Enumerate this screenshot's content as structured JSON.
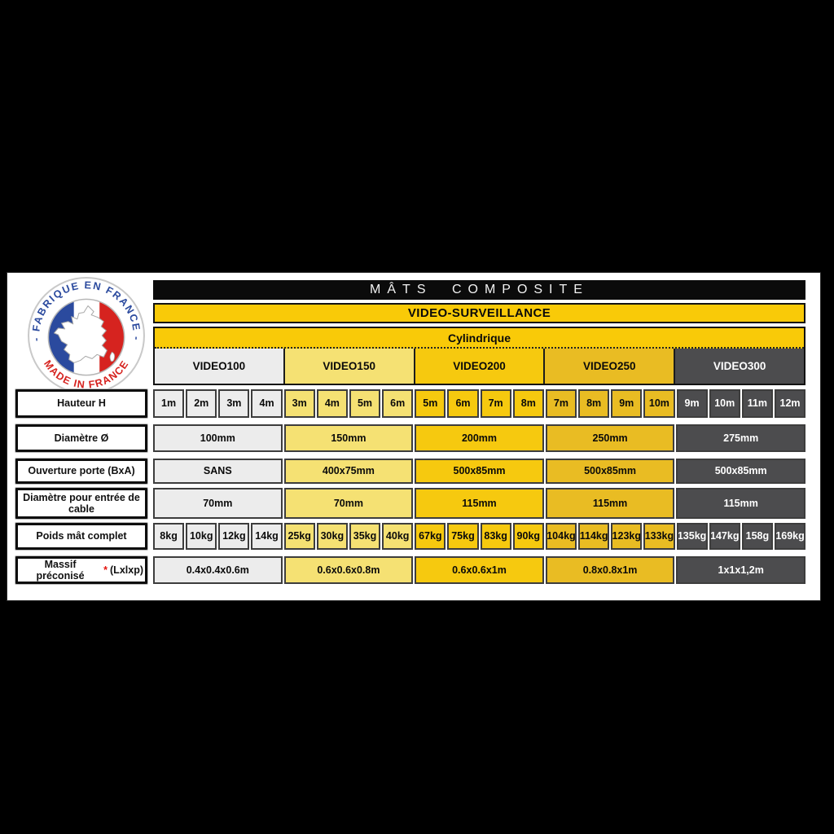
{
  "logo": {
    "top_text": "- FABRIQUE EN FRANCE -",
    "bottom_text": "MADE IN FRANCE",
    "colors": {
      "blue": "#2b4a9e",
      "white": "#ffffff",
      "red": "#d6231f",
      "ring": "#c9c9c9"
    }
  },
  "header": {
    "title": "MÂTS COMPOSITE",
    "subtitle": "VIDEO-SURVEILLANCE",
    "shape_label": "Cylindrique"
  },
  "colors": {
    "gold_bar": "#f9ca08",
    "title_bar_bg": "#0b0b0b",
    "panel_bg": "#ffffff",
    "frame_bg": "#000000",
    "cell_border": "#3d3d3d",
    "asterisk_red": "#e3140e"
  },
  "columns": [
    {
      "label": "VIDEO100",
      "bg": "#ececec",
      "text": "#0a0a0a"
    },
    {
      "label": "VIDEO150",
      "bg": "#f5e173",
      "text": "#0a0a0a"
    },
    {
      "label": "VIDEO200",
      "bg": "#f6c90f",
      "text": "#0a0a0a"
    },
    {
      "label": "VIDEO250",
      "bg": "#e9bc23",
      "text": "#0a0a0a"
    },
    {
      "label": "VIDEO300",
      "bg": "#4c4c4e",
      "text": "#ffffff"
    }
  ],
  "rows": [
    {
      "key": "hauteur",
      "label": "Hauteur H",
      "type": "split",
      "values": [
        [
          "1m",
          "2m",
          "3m",
          "4m"
        ],
        [
          "3m",
          "4m",
          "5m",
          "6m"
        ],
        [
          "5m",
          "6m",
          "7m",
          "8m"
        ],
        [
          "7m",
          "8m",
          "9m",
          "10m"
        ],
        [
          "9m",
          "10m",
          "11m",
          "12m"
        ]
      ]
    },
    {
      "key": "diametre",
      "label": "Diamètre Ø",
      "type": "merged",
      "values": [
        "100mm",
        "150mm",
        "200mm",
        "250mm",
        "275mm"
      ]
    },
    {
      "key": "ouverture-porte",
      "label": "Ouverture porte (BxA)",
      "type": "merged",
      "values": [
        "SANS",
        "400x75mm",
        "500x85mm",
        "500x85mm",
        "500x85mm"
      ]
    },
    {
      "key": "entree-cable",
      "label": "Diamètre pour entrée de cable",
      "type": "merged",
      "values": [
        "70mm",
        "70mm",
        "115mm",
        "115mm",
        "115mm"
      ]
    },
    {
      "key": "poids",
      "label": "Poids mât complet",
      "type": "split",
      "values": [
        [
          "8kg",
          "10kg",
          "12kg",
          "14kg"
        ],
        [
          "25kg",
          "30kg",
          "35kg",
          "40kg"
        ],
        [
          "67kg",
          "75kg",
          "83kg",
          "90kg"
        ],
        [
          "104kg",
          "114kg",
          "123kg",
          "133kg"
        ],
        [
          "135kg",
          "147kg",
          "158g",
          "169kg"
        ]
      ]
    },
    {
      "key": "massif",
      "label": "Massif préconisé",
      "asterisk": "*",
      "label_suffix": "(Lxlxp)",
      "type": "merged",
      "values": [
        "0.4x0.4x0.6m",
        "0.6x0.6x0.8m",
        "0.6x0.6x1m",
        "0.8x0.8x1m",
        "1x1x1,2m"
      ]
    }
  ]
}
